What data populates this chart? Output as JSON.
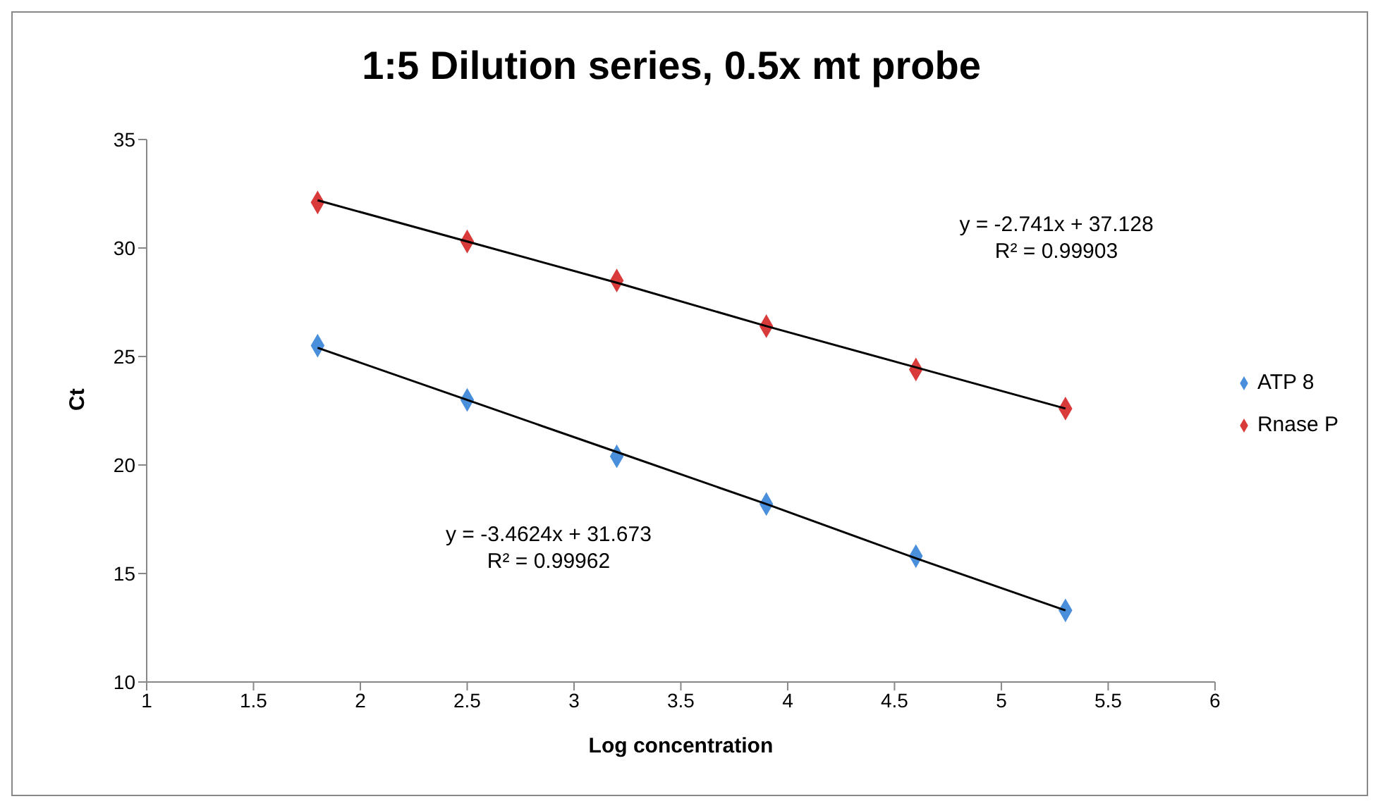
{
  "chart_data": {
    "type": "scatter",
    "title": "1:5 Dilution series, 0.5x mt probe",
    "xlabel": "Log concentration",
    "ylabel": "Ct",
    "x": [
      1.8,
      2.5,
      3.2,
      3.9,
      4.6,
      5.3
    ],
    "series": [
      {
        "name": "ATP 8",
        "color": "#4a8fdb",
        "values": [
          25.5,
          23.0,
          20.4,
          18.2,
          15.8,
          13.3
        ]
      },
      {
        "name": "Rnase P",
        "color": "#d93a3a",
        "values": [
          32.1,
          30.3,
          28.5,
          26.4,
          24.4,
          22.6
        ]
      },
      {
        "type": "line",
        "color": "#000000",
        "marker": "none",
        "values": [
          25.4,
          23.0,
          20.6,
          18.2,
          15.7,
          13.3
        ]
      },
      {
        "type": "line",
        "color": "#000000",
        "marker": "none",
        "values": [
          32.2,
          30.3,
          28.4,
          26.4,
          24.5,
          22.6
        ]
      }
    ],
    "annotations": [
      "y = -2.741x + 37.128\nR² = 0.99903",
      "y = -3.4624x + 31.673\nR² = 0.99962"
    ],
    "xlim": [
      1,
      6
    ],
    "xticks": [
      1,
      1.5,
      2,
      2.5,
      3,
      3.5,
      4,
      4.5,
      5,
      5.5,
      6
    ],
    "ylim": [
      10,
      35
    ],
    "yticks": [
      10,
      15,
      20,
      25,
      30,
      35
    ],
    "marker": "diamond",
    "grid": false,
    "legend": "right"
  }
}
